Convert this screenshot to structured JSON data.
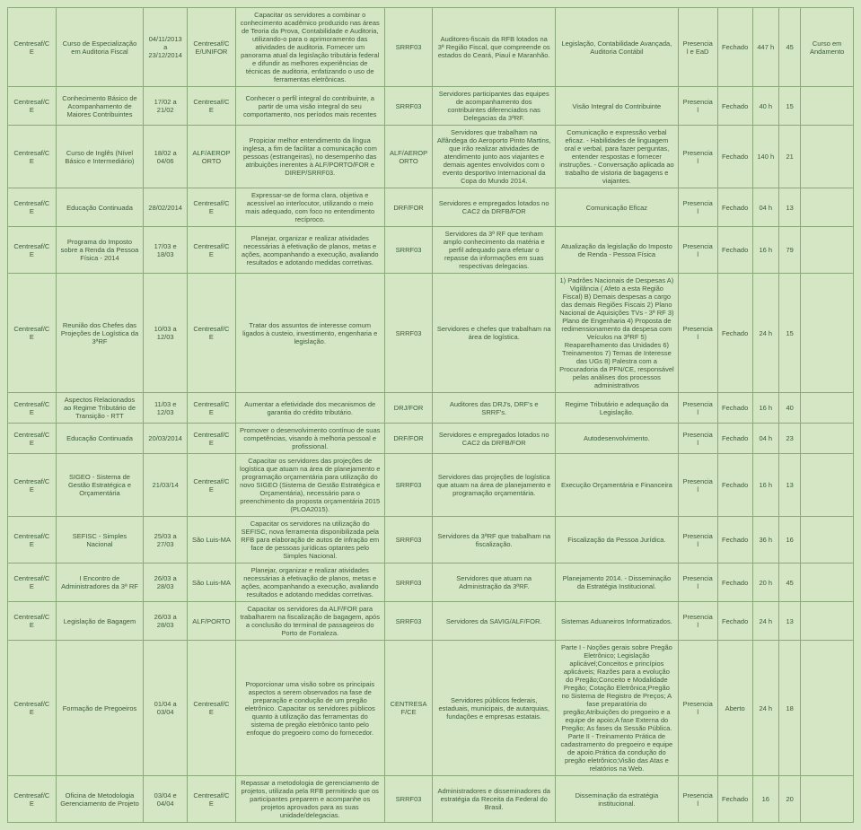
{
  "rows": [
    {
      "c0": "Centresaf/CE",
      "c1": "Curso de Especialização em Auditoria Fiscal",
      "c2": "04/11/2013 a 23/12/2014",
      "c3": "Centresaf/CE/UNIFOR",
      "c4": "Capacitar os servidores a combinar o conhecimento acadêmico produzido nas áreas de Teoria da Prova, Contabilidade e Auditoria, utilizando-o para o aprimoramento das atividades de auditoria. Fornecer um panorama atual da legislação tributária federal e difundir as melhores experiências de técnicas de auditoria, enfatizando o uso de ferramentas eletrônicas.",
      "c5": "SRRF03",
      "c6": "Auditores-fiscais da RFB lotados na 3ª Região Fiscal, que compreende os estados do Ceará, Piauí e Maranhão.",
      "c7": "Legislação, Contabilidade Avançada, Auditoria Contábil",
      "c8": "Presencial e EaD",
      "c9": "Fechado",
      "c10": "447 h",
      "c11": "45",
      "c12": "Curso em Andamento"
    },
    {
      "c0": "Centresaf/CE",
      "c1": "Conhecimento Básico de Acompanhamento de Maiores Contribuintes",
      "c2": "17/02 a 21/02",
      "c3": "Centresaf/CE",
      "c4": "Conhecer o perfil integral do contribuinte, a partir de uma visão integral do seu comportamento, nos períodos mais recentes",
      "c5": "SRRF03",
      "c6": "Servidores participantes das equipes de acompanhamento dos contribuintes diferenciados nas Delegacias da 3ªRF.",
      "c7": "Visão Integral do Contribuinte",
      "c8": "Presencial",
      "c9": "Fechado",
      "c10": "40 h",
      "c11": "15",
      "c12": ""
    },
    {
      "c0": "Centresaf/CE",
      "c1": "Curso de Inglês (Nível Básico e Intermediário)",
      "c2": "18/02 a 04/06",
      "c3": "ALF/AEROPORTO",
      "c4": "Propiciar melhor entendimento da língua inglesa, a fim de facilitar a comunicação com pessoas (estrangeiras), no desempenho das atribuições inerentes à ALF/PORTO/FOR e DIREP/SRRF03.",
      "c5": "ALF/AEROPORTO",
      "c6": "Servidores que trabalham na Alfândega do Aeroporto Pinto Martins, que irão realizar atividades de atendimento junto aos viajantes e demais agentes envolvidos com o evento desportivo Internacional da Copa do Mundo 2014.",
      "c7": "Comunicação e expressão verbal eficaz. - Habilidades de linguagem oral e verbal, para fazer perguntas, entender respostas e fornecer instruções. - Conversação aplicada ao trabalho de vistoria de bagagens e viajantes.",
      "c8": "Presencial",
      "c9": "Fechado",
      "c10": "140 h",
      "c11": "21",
      "c12": ""
    },
    {
      "c0": "Centresaf/CE",
      "c1": "Educação Continuada",
      "c2": "28/02/2014",
      "c3": "Centresaf/CE",
      "c4": "Expressar-se de forma clara, objetiva e acessível ao interlocutor, utilizando o meio mais adequado, com foco no entendimento recíproco.",
      "c5": "DRF/FOR",
      "c6": "Servidores e empregados lotados no CAC2 da DRFB/FOR",
      "c7": "Comunicação Eficaz",
      "c8": "Presencial",
      "c9": "Fechado",
      "c10": "04 h",
      "c11": "13",
      "c12": ""
    },
    {
      "c0": "Centresaf/CE",
      "c1": "Programa do Imposto sobre a Renda da Pessoa Física - 2014",
      "c2": "17/03 e 18/03",
      "c3": "Centresaf/CE",
      "c4": "Planejar, organizar e realizar atividades necessárias à efetivação de planos, metas e ações, acompanhando a execução, avaliando resultados e adotando medidas corretivas.",
      "c5": "SRRF03",
      "c6": "Servidores da 3ª RF que tenham amplo conhecimento da matéria e perfil adequado para efetuar o repasse da informações em suas respectivas delegacias.",
      "c7": "Atualização da legislação do Imposto de Renda - Pessoa Física",
      "c8": "Presencial",
      "c9": "Fechado",
      "c10": "16 h",
      "c11": "79",
      "c12": ""
    },
    {
      "c0": "Centresaf/CE",
      "c1": "Reunião dos Chefes das Projeções de Logística da 3ªRF",
      "c2": "10/03 a 12/03",
      "c3": "Centresaf/CE",
      "c4": "Tratar dos assuntos de interesse comum ligados à custeio, investimento, engenharia e legislação.",
      "c5": "SRRF03",
      "c6": "Servidores e chefes que trabalham na área de logística.",
      "c7": "1) Padrões Nacionais de Despesas A) Vigilância ( Afeto a esta Região Fiscal) B) Demais despesas a cargo das demais Regiões Fiscais 2) Plano Nacional de Aquisições TVs - 3ª RF 3) Plano de Engenharia 4) Proposta de redimensionamento da despesa com Veículos na 3ªRF 5) Reaparelhamento das Unidades 6) Treinamentos 7) Temas de Interesse das UGs 8) Palestra com a Procuradoria da PFN/CE, responsável pelas análises dos processos administrativos",
      "c8": "Presencial",
      "c9": "Fechado",
      "c10": "24 h",
      "c11": "15",
      "c12": ""
    },
    {
      "c0": "Centresaf/CE",
      "c1": "Aspectos Relacionados ao Regime Tributário de Transição - RTT",
      "c2": "11/03 e 12/03",
      "c3": "Centresaf/CE",
      "c4": "Aumentar a efetividade dos mecanismos de garantia do crédito tributário.",
      "c5": "DRJ/FOR",
      "c6": "Auditores das DRJ's, DRF's e SRRF's.",
      "c7": "Regime Tributário e adequação da Legislação.",
      "c8": "Presencial",
      "c9": "Fechado",
      "c10": "16 h",
      "c11": "40",
      "c12": ""
    },
    {
      "c0": "Centresaf/CE",
      "c1": "Educação Continuada",
      "c2": "20/03/2014",
      "c3": "Centresaf/CE",
      "c4": "Promover o desenvolvimento contínuo de suas competências, visando à melhoria pessoal e profissional.",
      "c5": "DRF/FOR",
      "c6": "Servidores e empregados lotados no CAC2 da DRFB/FOR",
      "c7": "Autodesenvolvimento.",
      "c8": "Presencial",
      "c9": "Fechado",
      "c10": "04 h",
      "c11": "23",
      "c12": ""
    },
    {
      "c0": "Centresaf/CE",
      "c1": "SIGEO - Sistema de Gestão Estratégica e Orçamentária",
      "c2": "21/03/14",
      "c3": "Centresaf/CE",
      "c4": "Capacitar os servidores das projeções de logística que atuam na área de planejamento e programação orçamentária para utilização do novo SIGEO (Sistema de Gestão Estratégica e Orçamentária), necessário para o preenchimento da proposta orçamentária 2015 (PLOA2015).",
      "c5": "SRRF03",
      "c6": "Servidores das projeções de logística que atuam na área de planejamento e programação orçamentária.",
      "c7": "Execução Orçamentária e Financeira",
      "c8": "Presencial",
      "c9": "Fechado",
      "c10": "16 h",
      "c11": "13",
      "c12": ""
    },
    {
      "c0": "Centresaf/CE",
      "c1": "SEFISC - Simples Nacional",
      "c2": "25/03 a 27/03",
      "c3": "São Luis-MA",
      "c4": "Capacitar os servidores na utilização do SEFISC, nova ferramenta disponibilizada pela RFB para elaboração de autos de infração em face de pessoas jurídicas optantes pelo Simples Nacional.",
      "c5": "SRRF03",
      "c6": "Servidores da 3ªRF que trabalham na fiscalização.",
      "c7": "Fiscalização da Pessoa Jurídica.",
      "c8": "Presencial",
      "c9": "Fechado",
      "c10": "36 h",
      "c11": "16",
      "c12": ""
    },
    {
      "c0": "Centresaf/CE",
      "c1": "I Encontro de Administradores da 3ª RF",
      "c2": "26/03 a 28/03",
      "c3": "São Luis-MA",
      "c4": "Planejar, organizar e realizar atividades necessárias à efetivação de planos, metas e ações, acompanhando a execução, avaliando resultados e adotando medidas corretivas.",
      "c5": "SRRF03",
      "c6": "Servidores que atuam na Administração da 3ªRF.",
      "c7": "Planejamento 2014. - Disseminação da Estratégia Institucional.",
      "c8": "Presencial",
      "c9": "Fechado",
      "c10": "20 h",
      "c11": "45",
      "c12": ""
    },
    {
      "c0": "Centresaf/CE",
      "c1": "Legislação de Bagagem",
      "c2": "26/03 a 28/03",
      "c3": "ALF/PORTO",
      "c4": "Capacitar os servidores da ALF/FOR para trabalharem na fiscalização de bagagem, após a conclusão do terminal de passageiros do Porto de Fortaleza.",
      "c5": "SRRF03",
      "c6": "Servidores da SAVIG/ALF/FOR.",
      "c7": "Sistemas Aduaneiros Informatizados.",
      "c8": "Presencial",
      "c9": "Fechado",
      "c10": "24 h",
      "c11": "13",
      "c12": ""
    },
    {
      "c0": "Centresaf/CE",
      "c1": "Formação de Pregoeiros",
      "c2": "01/04 a 03/04",
      "c3": "Centresaf/CE",
      "c4": "Proporcionar uma visão sobre os principais aspectos a serem observados na fase de preparação e condução de um pregão eletrônico. Capacitar os servidores públicos quanto à utilização das ferramentas do sistema de pregão eletrônico tanto pelo enfoque do pregoeiro como do fornecedor.",
      "c5": "CENTRESAF/CE",
      "c6": "Servidores públicos federais, estaduais, municipais, de autarquias, fundações e empresas estatais.",
      "c7": "Parte I - Noções gerais sobre Pregão Eletrônico; Legislação aplicável;Conceitos e princípios aplicáveis; Razões para a evolução do Pregão;Conceito e Modalidade Pregão; Cotação Eletrônica;Pregão no Sistema de Registro de Preços; A fase preparatória do pregão;Atribuições do pregoeiro e a equipe de apoio;A fase Externa do Pregão; As fases da Sessão Pública. Parte II - Treinamento Prática de cadastramento do pregoeiro e equipe de apoio.Prática da condução do pregão eletrônico;Visão das Atas e relatórios na Web.",
      "c8": "Presencial",
      "c9": "Aberto",
      "c10": "24 h",
      "c11": "18",
      "c12": ""
    },
    {
      "c0": "Centresaf/CE",
      "c1": "Oficina de Metodologia Gerenciamento de Projeto",
      "c2": "03/04 e 04/04",
      "c3": "Centresaf/CE",
      "c4": "Repassar a metodologia de gerenciamento de projetos, utilizada pela RFB permitindo que os participantes preparem e acompanhe os projetos aprovados para as suas unidade/delegacias.",
      "c5": "SRRF03",
      "c6": "Administradores e disseminadores da estratégia da Receita da Federal do Brasil.",
      "c7": "Disseminação da estratégia institucional.",
      "c8": "Presencial",
      "c9": "Fechado",
      "c10": "16",
      "c11": "20",
      "c12": ""
    }
  ]
}
